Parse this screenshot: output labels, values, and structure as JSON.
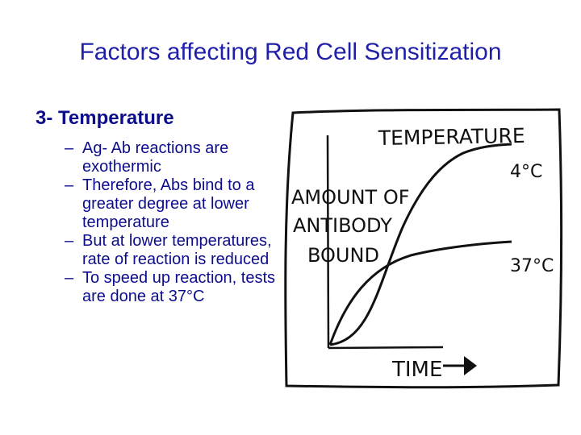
{
  "slide": {
    "title": "Factors affecting Red Cell Sensitization",
    "section_heading": "3- Temperature",
    "bullets": [
      "Ag- Ab reactions are exothermic",
      "Therefore, Abs bind to a greater degree at lower temperature",
      "But at lower temperatures, rate of reaction is reduced",
      "To speed up reaction, tests are done at 37°C"
    ],
    "bullet_marker": "–"
  },
  "figure": {
    "title": "TEMPERATURE",
    "ylabel_lines": [
      "AMOUNT OF",
      "ANTIBODY",
      "BOUND"
    ],
    "xlabel": "TIME",
    "curve_labels": [
      "4°C",
      "37°C"
    ],
    "colors": {
      "ink": "#111111",
      "text": "#0d0d8c",
      "title": "#1f1fa8"
    }
  }
}
